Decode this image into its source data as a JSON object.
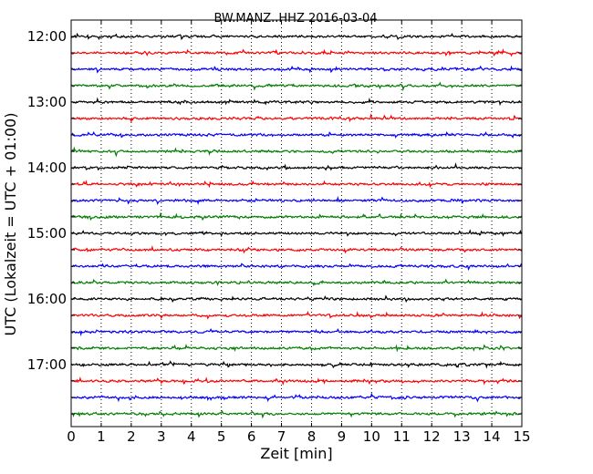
{
  "chart_data": {
    "type": "line",
    "title": "BW.MANZ..HHZ 2016-03-04",
    "xlabel": "Zeit  [min]",
    "ylabel": "UTC (Lokalzeit = UTC + 01:00)",
    "xlim": [
      0,
      15
    ],
    "x_ticks": [
      0,
      1,
      2,
      3,
      4,
      5,
      6,
      7,
      8,
      9,
      10,
      11,
      12,
      13,
      14,
      15
    ],
    "x_tick_labels": [
      "0",
      "1",
      "2",
      "3",
      "4",
      "5",
      "6",
      "7",
      "8",
      "9",
      "10",
      "11",
      "12",
      "13",
      "14",
      "15"
    ],
    "y_tick_labels": [
      "12:00",
      "13:00",
      "14:00",
      "15:00",
      "16:00",
      "17:00"
    ],
    "grid": "vertical dotted",
    "series": [
      {
        "start": "12:00",
        "color": "#000000"
      },
      {
        "start": "12:15",
        "color": "#ff0000"
      },
      {
        "start": "12:30",
        "color": "#0000ff"
      },
      {
        "start": "12:45",
        "color": "#007f00"
      },
      {
        "start": "13:00",
        "color": "#000000"
      },
      {
        "start": "13:15",
        "color": "#ff0000"
      },
      {
        "start": "13:30",
        "color": "#0000ff"
      },
      {
        "start": "13:45",
        "color": "#007f00"
      },
      {
        "start": "14:00",
        "color": "#000000"
      },
      {
        "start": "14:15",
        "color": "#ff0000"
      },
      {
        "start": "14:30",
        "color": "#0000ff"
      },
      {
        "start": "14:45",
        "color": "#007f00"
      },
      {
        "start": "15:00",
        "color": "#000000"
      },
      {
        "start": "15:15",
        "color": "#ff0000"
      },
      {
        "start": "15:30",
        "color": "#0000ff"
      },
      {
        "start": "15:45",
        "color": "#007f00"
      },
      {
        "start": "16:00",
        "color": "#000000"
      },
      {
        "start": "16:15",
        "color": "#ff0000"
      },
      {
        "start": "16:30",
        "color": "#0000ff"
      },
      {
        "start": "16:45",
        "color": "#007f00"
      },
      {
        "start": "17:00",
        "color": "#000000"
      },
      {
        "start": "17:15",
        "color": "#ff0000"
      },
      {
        "start": "17:30",
        "color": "#0000ff"
      },
      {
        "start": "17:45",
        "color": "#007f00"
      }
    ]
  }
}
